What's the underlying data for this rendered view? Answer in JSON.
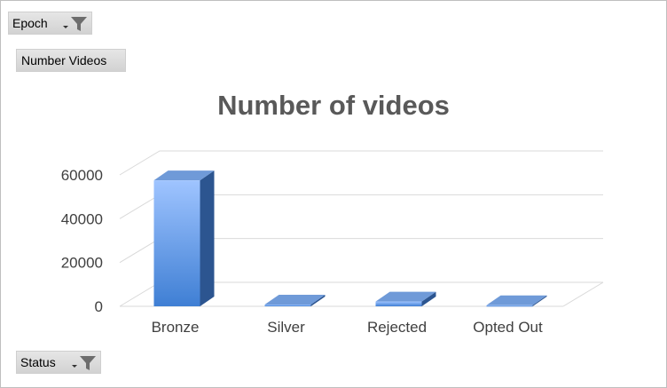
{
  "filters": {
    "epoch_label": "Epoch",
    "values_label": "Number Videos",
    "status_label": "Status"
  },
  "icons": {
    "filter": "funnel-filter-icon",
    "dropdown": "dropdown-arrow-icon"
  },
  "colors": {
    "bar_top": "#9fc4ff",
    "bar_bottom": "#3f7fd4",
    "bar_side": "#2c5590",
    "bar_cap": "#6f9ad8",
    "grid": "#d9d9d9",
    "title": "#595959",
    "tick": "#404040"
  },
  "chart_data": {
    "type": "bar",
    "title": "Number of videos",
    "categories": [
      "Bronze",
      "Silver",
      "Rejected",
      "Opted Out"
    ],
    "series": [
      {
        "values": [
          57500,
          800,
          2200,
          500
        ]
      }
    ],
    "ylim": [
      0,
      60000
    ],
    "yticks": [
      0,
      20000,
      40000,
      60000
    ],
    "grid": true,
    "three_d": true
  }
}
